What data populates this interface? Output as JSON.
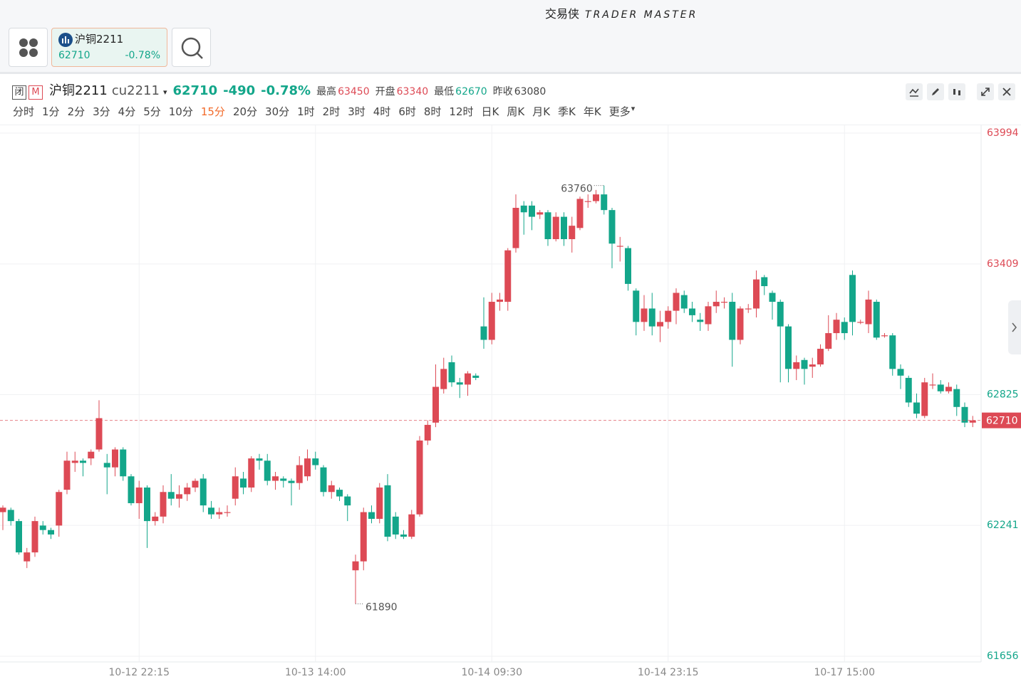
{
  "header": {
    "logo_cn": "交易侠",
    "logo_en": "TRADER MASTER"
  },
  "tab": {
    "name": "沪铜2211",
    "price": 62710,
    "change_pct": "-0.78%"
  },
  "quote": {
    "status": "闭",
    "badge": "M",
    "name": "沪铜2211",
    "code": "cu2211",
    "price": 62710,
    "change": -490,
    "change_pct": "-0.78%",
    "stats": [
      {
        "label": "最高",
        "value": 63450
      },
      {
        "label": "开盘",
        "value": 63340
      },
      {
        "label": "最低",
        "value": 62670
      },
      {
        "label": "昨收",
        "value": 63080
      }
    ]
  },
  "periods": [
    "分时",
    "1分",
    "2分",
    "3分",
    "4分",
    "5分",
    "10分",
    "15分",
    "20分",
    "30分",
    "1时",
    "2时",
    "3时",
    "4时",
    "6时",
    "8时",
    "12时",
    "日K",
    "周K",
    "月K",
    "季K",
    "年K",
    "更多"
  ],
  "selected_period": 7,
  "chart_data": {
    "type": "candlestick",
    "categories": [
      null,
      null,
      null,
      null,
      null,
      null,
      null,
      null,
      null,
      null,
      null,
      null,
      null,
      null,
      null,
      null,
      null,
      "10-12 22:15",
      null,
      null,
      null,
      null,
      null,
      null,
      null,
      null,
      null,
      null,
      null,
      null,
      null,
      null,
      null,
      null,
      null,
      null,
      null,
      null,
      null,
      "10-13 14:00",
      null,
      null,
      null,
      null,
      null,
      null,
      null,
      null,
      null,
      null,
      null,
      null,
      null,
      null,
      null,
      null,
      null,
      null,
      null,
      null,
      null,
      "10-14 09:30",
      null,
      null,
      null,
      null,
      null,
      null,
      null,
      null,
      null,
      null,
      null,
      null,
      null,
      null,
      null,
      null,
      null,
      null,
      null,
      null,
      null,
      "10-14 23:15",
      null,
      null,
      null,
      null,
      null,
      null,
      null,
      null,
      null,
      null,
      null,
      null,
      null,
      null,
      null,
      null,
      null,
      null,
      null,
      null,
      null,
      "10-17 15:00",
      null,
      null,
      null,
      null,
      null,
      null,
      null,
      null,
      null,
      null,
      null,
      null,
      null,
      null,
      null,
      null
    ],
    "open": [
      62300,
      62310,
      62260,
      62080,
      62120,
      62240,
      62220,
      62240,
      62400,
      62520,
      62530,
      62540,
      62580,
      62520,
      62500,
      62580,
      62460,
      62340,
      62410,
      62260,
      62280,
      62390,
      62360,
      62380,
      62410,
      62450,
      62320,
      62290,
      62300,
      62360,
      62450,
      62410,
      62540,
      62530,
      62440,
      62450,
      62440,
      62430,
      62460,
      62540,
      62500,
      62390,
      62400,
      62370,
      62040,
      62080,
      62300,
      62270,
      62420,
      62280,
      62200,
      62190,
      62290,
      62620,
      62700,
      62850,
      62970,
      62880,
      62870,
      62910,
      63130,
      63070,
      63240,
      63240,
      63480,
      63670,
      63670,
      63630,
      63640,
      63520,
      63620,
      63520,
      63570,
      63690,
      63690,
      63720,
      63650,
      63490,
      63480,
      63290,
      63150,
      63210,
      63130,
      63150,
      63200,
      63270,
      63210,
      63160,
      63140,
      63220,
      63240,
      63240,
      63070,
      63210,
      63210,
      63350,
      63280,
      63240,
      63130,
      62940,
      62980,
      62950,
      62960,
      63030,
      63100,
      63150,
      63360,
      63150,
      63140,
      63240,
      63090,
      63090,
      62940,
      62900,
      62790,
      62730,
      62870,
      62870,
      62840,
      62850,
      62770,
      62700
    ],
    "high": [
      62330,
      62320,
      62270,
      62140,
      62280,
      62260,
      62230,
      62400,
      62570,
      62570,
      62540,
      62580,
      62800,
      62560,
      62590,
      62590,
      62470,
      62440,
      62420,
      62300,
      62420,
      62470,
      62420,
      62430,
      62450,
      62470,
      62350,
      62320,
      62330,
      62500,
      62480,
      62550,
      62560,
      62560,
      62480,
      62460,
      62450,
      62550,
      62580,
      62570,
      62510,
      62440,
      62410,
      62380,
      62110,
      62320,
      62330,
      62430,
      62470,
      62300,
      62220,
      62310,
      62640,
      62710,
      62960,
      62990,
      63000,
      62900,
      62930,
      62920,
      63260,
      63280,
      63280,
      63480,
      63720,
      63690,
      63690,
      63650,
      63650,
      63640,
      63640,
      63620,
      63710,
      63720,
      63740,
      63760,
      63660,
      63530,
      63490,
      63300,
      63270,
      63280,
      63200,
      63220,
      63300,
      63290,
      63240,
      63190,
      63240,
      63290,
      63260,
      63280,
      63220,
      63230,
      63380,
      63360,
      63290,
      63250,
      63140,
      63000,
      62990,
      62990,
      63050,
      63180,
      63190,
      63170,
      63380,
      63160,
      63290,
      63250,
      63100,
      63100,
      62960,
      62910,
      62830,
      62900,
      62920,
      62890,
      62880,
      62870,
      62790,
      62730
    ],
    "low": [
      62220,
      62240,
      62110,
      62050,
      62100,
      62200,
      62180,
      62190,
      62380,
      62480,
      62460,
      62510,
      62570,
      62380,
      62460,
      62440,
      62330,
      62270,
      62140,
      62240,
      62250,
      62330,
      62320,
      62350,
      62390,
      62300,
      62270,
      62270,
      62280,
      62330,
      62380,
      62390,
      62490,
      62420,
      62400,
      62410,
      62330,
      62400,
      62440,
      62490,
      62370,
      62360,
      62350,
      62260,
      61890,
      62040,
      62250,
      62250,
      62170,
      62180,
      62180,
      62180,
      62280,
      62600,
      62680,
      62830,
      62860,
      62810,
      62820,
      62890,
      63030,
      63050,
      63200,
      63200,
      63460,
      63540,
      63560,
      63610,
      63490,
      63510,
      63490,
      63460,
      63560,
      63660,
      63680,
      63630,
      63390,
      63420,
      63290,
      63090,
      63110,
      63090,
      63060,
      63120,
      63140,
      63190,
      63150,
      63110,
      63110,
      63190,
      63210,
      62950,
      63050,
      63190,
      63170,
      63270,
      63160,
      62880,
      62880,
      62890,
      62870,
      62900,
      62950,
      63020,
      63070,
      63070,
      63090,
      63140,
      63100,
      63070,
      63080,
      62910,
      62850,
      62770,
      62720,
      62720,
      62850,
      62830,
      62830,
      62730,
      62680,
      62680
    ],
    "close": [
      62320,
      62260,
      62120,
      62120,
      62260,
      62220,
      62200,
      62390,
      62530,
      62530,
      62520,
      62570,
      62720,
      62500,
      62580,
      62460,
      62340,
      62410,
      62260,
      62280,
      62390,
      62360,
      62380,
      62410,
      62440,
      62330,
      62290,
      62300,
      62300,
      62460,
      62410,
      62540,
      62530,
      62440,
      62460,
      62440,
      62430,
      62510,
      62540,
      62510,
      62390,
      62420,
      62370,
      62330,
      62080,
      62300,
      62270,
      62410,
      62190,
      62200,
      62190,
      62290,
      62620,
      62690,
      62860,
      62940,
      62880,
      62870,
      62920,
      62900,
      63070,
      63240,
      63250,
      63470,
      63660,
      63640,
      63620,
      63640,
      63520,
      63620,
      63520,
      63580,
      63700,
      63690,
      63720,
      63650,
      63500,
      63490,
      63320,
      63150,
      63210,
      63130,
      63150,
      63200,
      63280,
      63210,
      63180,
      63150,
      63220,
      63240,
      63240,
      63070,
      63210,
      63210,
      63340,
      63310,
      63240,
      63130,
      62940,
      62970,
      62940,
      62960,
      63030,
      63100,
      63160,
      63100,
      63150,
      63150,
      63250,
      63080,
      63090,
      62940,
      62910,
      62790,
      62740,
      62880,
      62870,
      62840,
      62860,
      62770,
      62700,
      62710
    ],
    "ylim": [
      61656,
      63994
    ],
    "yticks": [
      61656,
      62241,
      62825,
      63409,
      63994
    ],
    "last_price": 62710,
    "max_marker": 63760,
    "min_marker": 61890,
    "up_color": "#dd4a55",
    "down_color": "#13a68a",
    "grid": true
  }
}
